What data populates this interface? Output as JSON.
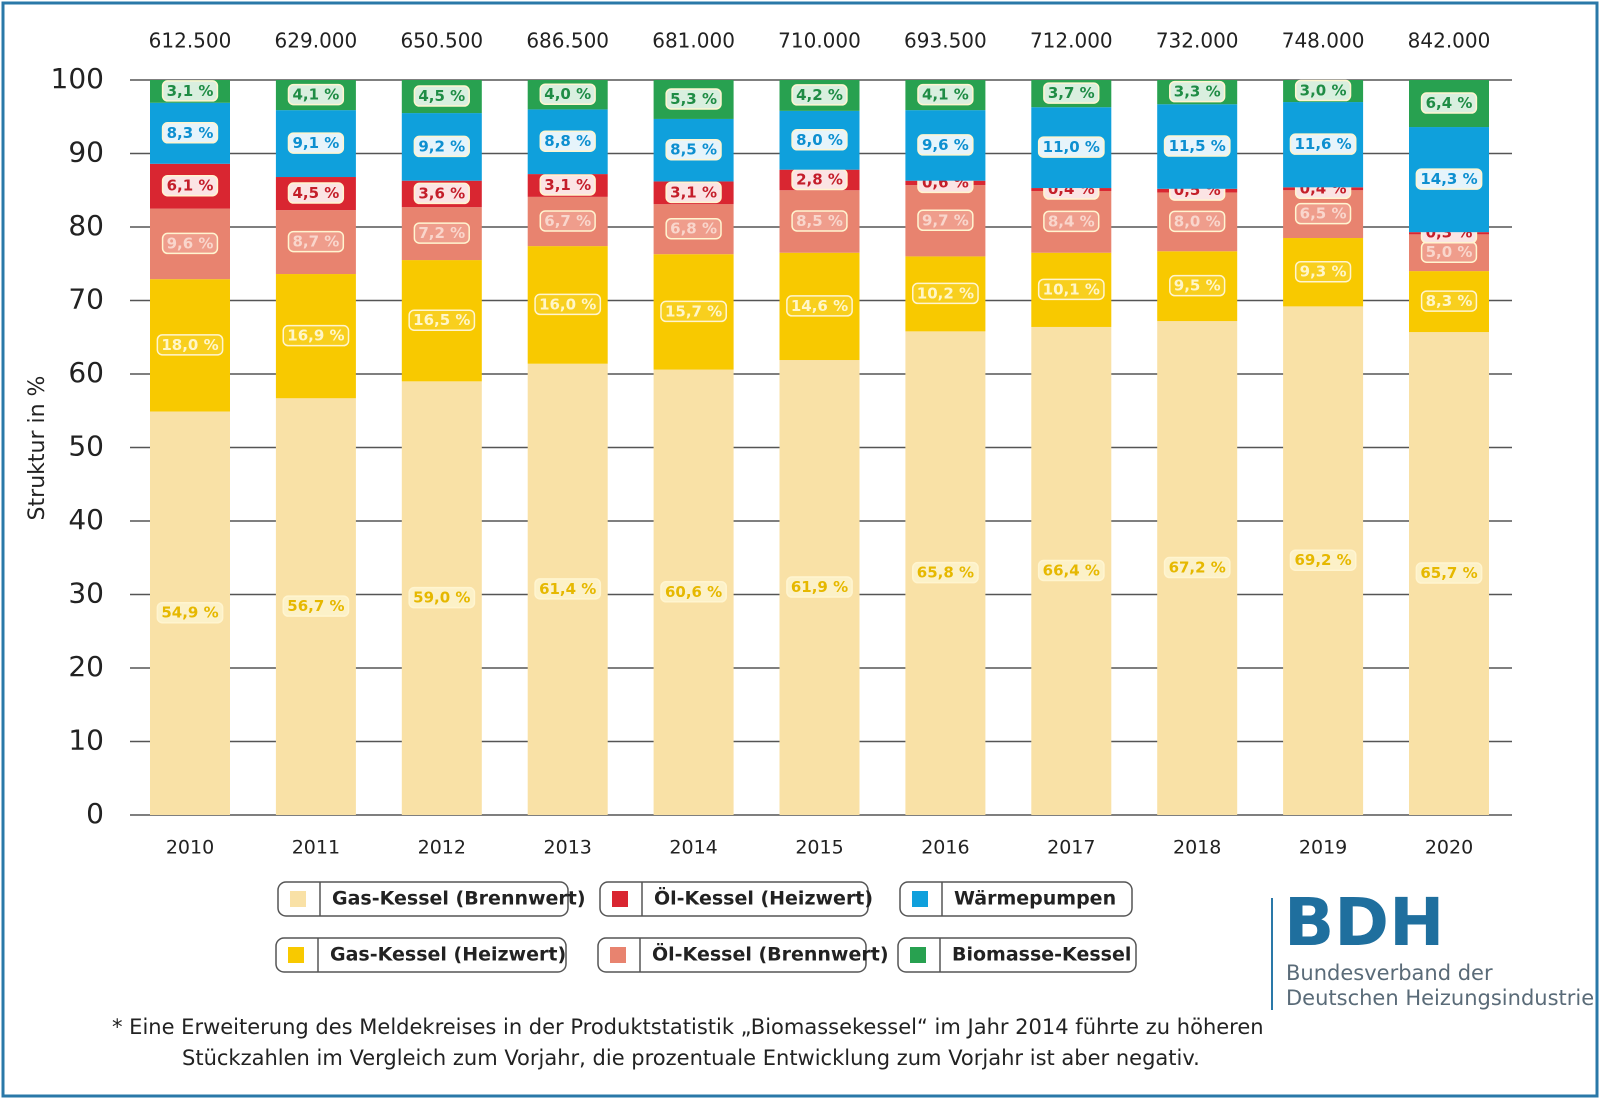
{
  "chart_data": {
    "type": "stacked-bar",
    "y_label": "Struktur in %",
    "categories": [
      "2010",
      "2011",
      "2012",
      "2013",
      "2014",
      "2015",
      "2016",
      "2017",
      "2018",
      "2019",
      "2020"
    ],
    "totals": {
      "values": [
        612500,
        629000,
        650500,
        686500,
        681000,
        710000,
        693500,
        712000,
        732000,
        748000,
        842000
      ],
      "value_labels": [
        "612.500",
        "629.000",
        "650.500",
        "686.500",
        "681.000",
        "710.000",
        "693.500",
        "712.000",
        "732.000",
        "748.000",
        "842.000"
      ]
    },
    "ylim": [
      0,
      100
    ],
    "yticks": [
      0,
      10,
      20,
      30,
      40,
      50,
      60,
      70,
      80,
      90,
      100
    ],
    "grid": true,
    "series": [
      {
        "name": "Gas-Kessel (Brennwert)",
        "color": "#f9e1a6",
        "values": [
          54.9,
          56.7,
          59.0,
          61.4,
          60.6,
          61.9,
          65.8,
          66.4,
          67.2,
          69.2,
          65.7
        ],
        "value_labels": [
          "54,9 %",
          "56,7 %",
          "59,0 %",
          "61,4 %",
          "60,6 %",
          "61,9 %",
          "65,8 %",
          "66,4 %",
          "67,2 %",
          "69,2 %",
          "65,7 %"
        ]
      },
      {
        "name": "Gas-Kessel (Heizwert)",
        "color": "#f8c900",
        "values": [
          18.0,
          16.9,
          16.5,
          16.0,
          15.7,
          14.6,
          10.2,
          10.1,
          9.5,
          9.3,
          8.3
        ],
        "value_labels": [
          "18,0 %",
          "16,9 %",
          "16,5 %",
          "16,0 %",
          "15,7 %",
          "14,6 %",
          "10,2 %",
          "10,1 %",
          "9,5 %",
          "9,3 %",
          "8,3 %"
        ]
      },
      {
        "name": "Öl-Kessel (Brennwert)",
        "color": "#e8836f",
        "values": [
          9.6,
          8.7,
          7.2,
          6.7,
          6.8,
          8.5,
          9.7,
          8.4,
          8.0,
          6.5,
          5.0
        ],
        "value_labels": [
          "9,6 %",
          "8,7 %",
          "7,2 %",
          "6,7 %",
          "6,8 %",
          "8,5 %",
          "9,7 %",
          "8,4 %",
          "8,0 %",
          "6,5 %",
          "5,0 %"
        ]
      },
      {
        "name": "Öl-Kessel (Heizwert)",
        "color": "#d92631",
        "values": [
          6.1,
          4.5,
          3.6,
          3.1,
          3.1,
          2.8,
          0.6,
          0.4,
          0.5,
          0.4,
          0.3
        ],
        "value_labels": [
          "6,1 %",
          "4,5 %",
          "3,6 %",
          "3,1 %",
          "3,1 %",
          "2,8 %",
          "0,6 %",
          "0,4 %",
          "0,5 %",
          "0,4 %",
          "0,3 %"
        ]
      },
      {
        "name": "Wärmepumpen",
        "color": "#0fa0dc",
        "values": [
          8.3,
          9.1,
          9.2,
          8.8,
          8.5,
          8.0,
          9.6,
          11.0,
          11.5,
          11.6,
          14.3
        ],
        "value_labels": [
          "8,3 %",
          "9,1 %",
          "9,2 %",
          "8,8 %",
          "8,5 %",
          "8,0 %",
          "9,6 %",
          "11,0 %",
          "11,5 %",
          "11,6 %",
          "14,3 %"
        ]
      },
      {
        "name": "Biomasse-Kessel",
        "color": "#28a150",
        "values": [
          3.1,
          4.1,
          4.5,
          4.0,
          5.3,
          4.2,
          4.1,
          3.7,
          3.3,
          3.0,
          6.4
        ],
        "value_labels": [
          "3,1 %",
          "4,1 %",
          "4,5 %",
          "4,0 %",
          "5,3 %",
          "4,2 %",
          "4,1 %",
          "3,7 %",
          "3,3 %",
          "3,0 %",
          "6,4 %"
        ]
      }
    ]
  },
  "logo": {
    "text": "BDH",
    "lines": [
      "Bundesverband der",
      "Deutschen Heizungsindustrie"
    ]
  },
  "footnote": [
    "* Eine Erweiterung des Meldekreises in der Produktstatistik „Biomassekessel“ im Jahr 2014 führte zu höheren",
    "Stückzahlen im Vergleich zum Vorjahr, die prozentuale Entwicklung zum Vorjahr ist aber negativ."
  ]
}
